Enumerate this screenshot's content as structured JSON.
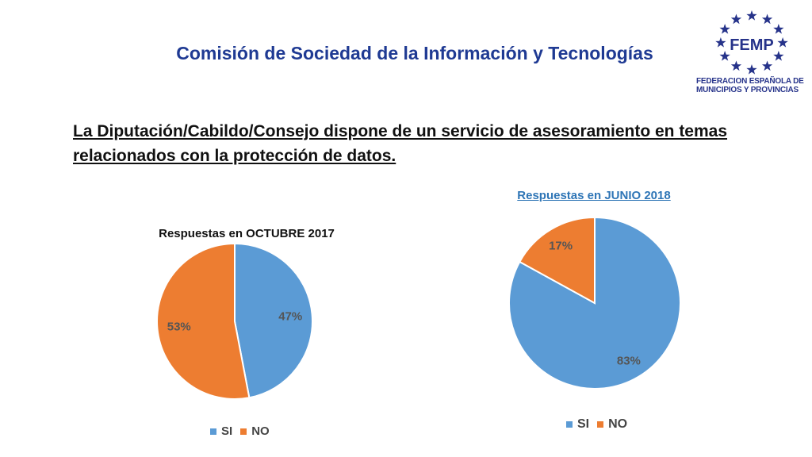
{
  "header": {
    "title": "Comisión de Sociedad de la Información y Tecnologías"
  },
  "logo": {
    "text": "FEMP",
    "org_line1": "FEDERACION ESPAÑOLA DE",
    "org_line2": "MUNICIPIOS Y PROVINCIAS",
    "color": "#26338a"
  },
  "question": {
    "text": "La Diputación/Cabildo/Consejo dispone de un servicio de asesoramiento en temas relacionados con la protección de datos."
  },
  "colors": {
    "si": "#5b9bd5",
    "no": "#ed7d31",
    "label": "#555555"
  },
  "chart_data": [
    {
      "type": "pie",
      "title": "Respuestas en OCTUBRE 2017",
      "categories": [
        "SI",
        "NO"
      ],
      "values": [
        47,
        53
      ],
      "labels": [
        "47%",
        "53%"
      ],
      "legend": "bottom"
    },
    {
      "type": "pie",
      "title": "Respuestas en JUNIO 2018",
      "categories": [
        "SI",
        "NO"
      ],
      "values": [
        83,
        17
      ],
      "labels": [
        "83%",
        "17%"
      ],
      "legend": "bottom"
    }
  ]
}
